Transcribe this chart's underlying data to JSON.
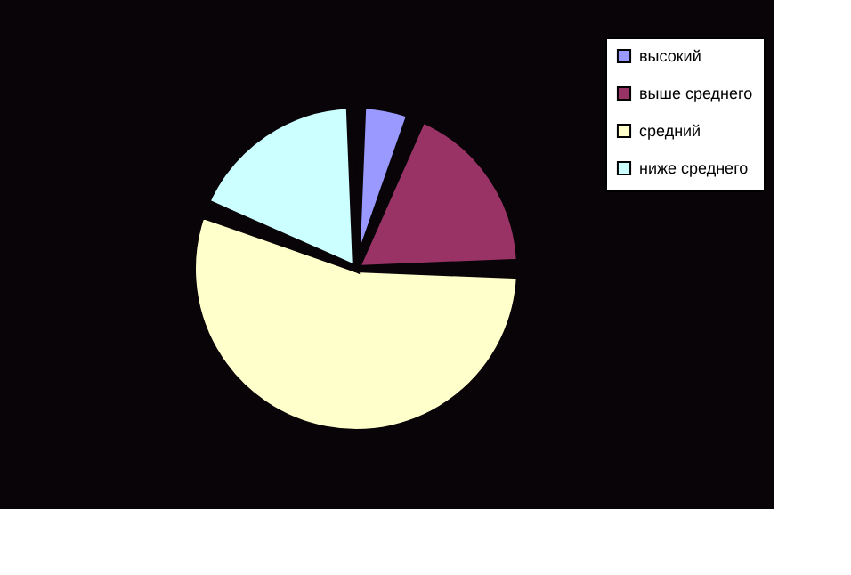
{
  "chart_data": {
    "type": "pie",
    "categories": [
      "высокий",
      "выше среднего",
      "средний",
      "ниже среднего"
    ],
    "values": [
      6,
      19,
      56,
      19
    ],
    "colors": [
      "#9999ff",
      "#993366",
      "#ffffcc",
      "#ccffff"
    ],
    "legend": "right"
  }
}
